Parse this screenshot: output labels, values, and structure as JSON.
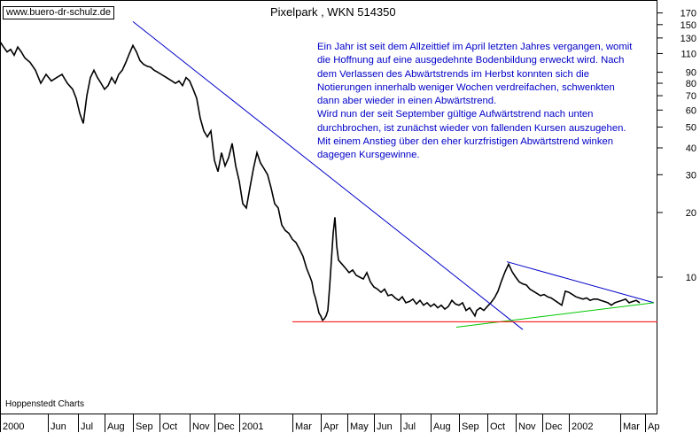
{
  "brand": "www.buero-dr-schulz.de",
  "source": "Hoppenstedt Charts",
  "chart_data": {
    "type": "line",
    "title": "Pixelpark , WKN 514350",
    "y_scale": "log",
    "ylim": [
      6.2,
      180
    ],
    "y_ticks": [
      170,
      150,
      130,
      110,
      90,
      80,
      70,
      60,
      50,
      40,
      30,
      20,
      10
    ],
    "x_ticks": [
      "2000",
      "Jun",
      "Jul",
      "Aug",
      "Sep",
      "Oct",
      "Nov",
      "Dec",
      "2001",
      "Mar",
      "Apr",
      "May",
      "Jun",
      "Jul",
      "Aug",
      "Sep",
      "Oct",
      "Nov",
      "Dec",
      "2002",
      "Mar",
      "Ap"
    ],
    "annotation": [
      "Ein Jahr ist seit dem Allzeittief im April letzten Jahres vergangen, womit die Hoffnung auf eine ausgedehnte Bodenbildung erweckt wird. Nach dem Verlassen des Abwärtstrends im Herbst konnten sich die Notierungen innerhalb weniger Wochen verdreifachen, schwenkten dann aber wieder in einen Abwärtstrend.",
      "Wird nun der seit September gültige Aufwärtstrend nach unten durchbrochen, ist zunächst wieder von fallenden Kursen auszugehen. Mit einem Anstieg über den eher kurzfristigen Abwärtstrend winken dagegen Kursgewinne."
    ],
    "series": [
      {
        "type": "line",
        "color": "#000000",
        "points": [
          [
            0,
            125
          ],
          [
            4,
            118
          ],
          [
            8,
            112
          ],
          [
            12,
            115
          ],
          [
            16,
            108
          ],
          [
            20,
            118
          ],
          [
            24,
            112
          ],
          [
            28,
            105
          ],
          [
            34,
            100
          ],
          [
            40,
            92
          ],
          [
            46,
            80
          ],
          [
            52,
            88
          ],
          [
            58,
            82
          ],
          [
            64,
            85
          ],
          [
            70,
            88
          ],
          [
            76,
            80
          ],
          [
            82,
            75
          ],
          [
            86,
            68
          ],
          [
            90,
            58
          ],
          [
            94,
            52
          ],
          [
            98,
            70
          ],
          [
            102,
            85
          ],
          [
            106,
            92
          ],
          [
            110,
            85
          ],
          [
            114,
            80
          ],
          [
            118,
            75
          ],
          [
            122,
            78
          ],
          [
            126,
            85
          ],
          [
            130,
            80
          ],
          [
            134,
            88
          ],
          [
            138,
            92
          ],
          [
            142,
            100
          ],
          [
            146,
            110
          ],
          [
            150,
            120
          ],
          [
            154,
            112
          ],
          [
            158,
            102
          ],
          [
            162,
            98
          ],
          [
            166,
            96
          ],
          [
            170,
            95
          ],
          [
            174,
            92
          ],
          [
            178,
            90
          ],
          [
            182,
            88
          ],
          [
            186,
            86
          ],
          [
            190,
            84
          ],
          [
            194,
            82
          ],
          [
            198,
            80
          ],
          [
            202,
            82
          ],
          [
            206,
            78
          ],
          [
            210,
            85
          ],
          [
            214,
            82
          ],
          [
            218,
            75
          ],
          [
            222,
            68
          ],
          [
            226,
            55
          ],
          [
            230,
            48
          ],
          [
            234,
            45
          ],
          [
            238,
            48
          ],
          [
            242,
            35
          ],
          [
            246,
            31
          ],
          [
            250,
            38
          ],
          [
            254,
            33
          ],
          [
            258,
            36
          ],
          [
            262,
            42
          ],
          [
            266,
            33
          ],
          [
            270,
            28
          ],
          [
            274,
            22
          ],
          [
            278,
            21
          ],
          [
            282,
            26
          ],
          [
            286,
            32
          ],
          [
            290,
            38
          ],
          [
            294,
            34
          ],
          [
            298,
            32
          ],
          [
            302,
            30
          ],
          [
            306,
            26
          ],
          [
            310,
            22
          ],
          [
            314,
            21
          ],
          [
            318,
            17.5
          ],
          [
            322,
            16.5
          ],
          [
            326,
            16
          ],
          [
            330,
            15
          ],
          [
            334,
            14.5
          ],
          [
            338,
            13.5
          ],
          [
            342,
            12.5
          ],
          [
            346,
            11
          ],
          [
            350,
            10
          ],
          [
            352,
            9.5
          ],
          [
            354,
            8.5
          ],
          [
            356,
            8
          ],
          [
            358,
            7.4
          ],
          [
            360,
            6.8
          ],
          [
            362,
            6.6
          ],
          [
            364,
            6.3
          ],
          [
            366,
            6.4
          ],
          [
            368,
            6.6
          ],
          [
            370,
            7
          ],
          [
            372,
            9
          ],
          [
            374,
            12
          ],
          [
            376,
            16
          ],
          [
            378,
            19
          ],
          [
            380,
            14
          ],
          [
            382,
            12
          ],
          [
            386,
            11.5
          ],
          [
            390,
            11
          ],
          [
            394,
            10.5
          ],
          [
            398,
            10.8
          ],
          [
            402,
            10.2
          ],
          [
            406,
            10
          ],
          [
            410,
            9.8
          ],
          [
            414,
            10.5
          ],
          [
            418,
            9.5
          ],
          [
            422,
            9
          ],
          [
            426,
            8.8
          ],
          [
            430,
            8.5
          ],
          [
            434,
            8.8
          ],
          [
            438,
            8.2
          ],
          [
            442,
            8.3
          ],
          [
            446,
            8
          ],
          [
            450,
            7.8
          ],
          [
            454,
            8.1
          ],
          [
            458,
            7.6
          ],
          [
            462,
            7.7
          ],
          [
            466,
            7.9
          ],
          [
            470,
            7.5
          ],
          [
            474,
            7.8
          ],
          [
            478,
            7.4
          ],
          [
            482,
            7.6
          ],
          [
            486,
            7.3
          ],
          [
            490,
            7.5
          ],
          [
            494,
            7.2
          ],
          [
            498,
            7.4
          ],
          [
            502,
            7.1
          ],
          [
            506,
            7.3
          ],
          [
            510,
            7.8
          ],
          [
            514,
            7.5
          ],
          [
            518,
            7.4
          ],
          [
            522,
            7.6
          ],
          [
            526,
            7.0
          ],
          [
            530,
            7.2
          ],
          [
            534,
            6.8
          ],
          [
            536,
            6.6
          ],
          [
            538,
            7.0
          ],
          [
            542,
            7.2
          ],
          [
            546,
            7.0
          ],
          [
            550,
            7.3
          ],
          [
            554,
            7.6
          ],
          [
            558,
            8.0
          ],
          [
            562,
            8.6
          ],
          [
            566,
            9.6
          ],
          [
            570,
            10.6
          ],
          [
            574,
            11.5
          ],
          [
            578,
            10.6
          ],
          [
            582,
            10.0
          ],
          [
            586,
            9.5
          ],
          [
            590,
            9.3
          ],
          [
            594,
            9.2
          ],
          [
            598,
            8.8
          ],
          [
            602,
            8.6
          ],
          [
            606,
            8.4
          ],
          [
            610,
            8.2
          ],
          [
            614,
            8.3
          ],
          [
            618,
            8.1
          ],
          [
            622,
            8.0
          ],
          [
            626,
            7.8
          ],
          [
            630,
            7.6
          ],
          [
            634,
            7.4
          ],
          [
            638,
            8.6
          ],
          [
            642,
            8.5
          ],
          [
            646,
            8.3
          ],
          [
            650,
            8.1
          ],
          [
            654,
            8.0
          ],
          [
            658,
            7.9
          ],
          [
            662,
            8.0
          ],
          [
            666,
            7.8
          ],
          [
            670,
            7.9
          ],
          [
            674,
            7.9
          ],
          [
            678,
            7.8
          ],
          [
            682,
            7.7
          ],
          [
            686,
            7.6
          ],
          [
            690,
            7.4
          ],
          [
            694,
            7.6
          ],
          [
            698,
            7.7
          ],
          [
            702,
            7.8
          ],
          [
            706,
            7.9
          ],
          [
            710,
            7.6
          ],
          [
            714,
            7.7
          ],
          [
            718,
            7.8
          ],
          [
            722,
            7.6
          ]
        ]
      },
      {
        "type": "trend-line",
        "color": "#0000c8",
        "points": [
          [
            150,
            155
          ],
          [
            590,
            5.7
          ]
        ]
      },
      {
        "type": "trend-line",
        "color": "#0000c8",
        "points": [
          [
            572,
            11.8
          ],
          [
            738,
            7.6
          ]
        ]
      },
      {
        "type": "trend-line",
        "color": "#00c800",
        "points": [
          [
            515,
            5.85
          ],
          [
            738,
            7.6
          ]
        ]
      },
      {
        "type": "support-line",
        "color": "#ff0000",
        "points": [
          [
            330,
            6.2
          ],
          [
            742,
            6.2
          ]
        ]
      }
    ]
  }
}
